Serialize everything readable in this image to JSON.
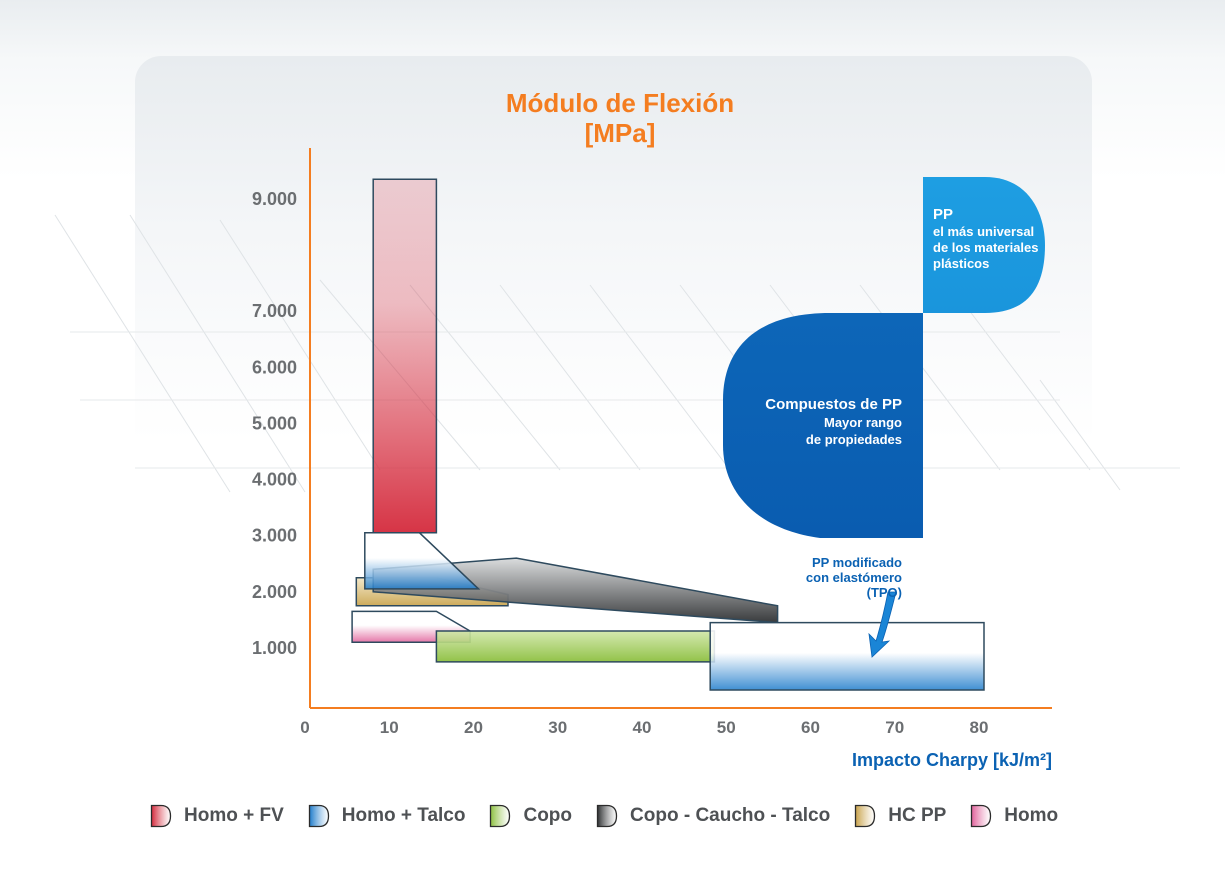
{
  "chart_data": {
    "type": "range-area",
    "title": "Módulo de Flexión",
    "ylabel": "[MPa]",
    "xlabel": "Impacto Charpy [kJ/m²]",
    "xlim": [
      0,
      85
    ],
    "ylim": [
      0,
      9000
    ],
    "yticks": [
      {
        "value": 1000,
        "label": "1.000"
      },
      {
        "value": 2000,
        "label": "2.000"
      },
      {
        "value": 3000,
        "label": "3.000"
      },
      {
        "value": 4000,
        "label": "4.000"
      },
      {
        "value": 5000,
        "label": "5.000"
      },
      {
        "value": 6000,
        "label": "6.000"
      },
      {
        "value": 7000,
        "label": "7.000"
      },
      {
        "value": 9000,
        "label": "9.000"
      }
    ],
    "xticks": [
      {
        "value": 0,
        "label": "0"
      },
      {
        "value": 10,
        "label": "10"
      },
      {
        "value": 20,
        "label": "20"
      },
      {
        "value": 30,
        "label": "30"
      },
      {
        "value": 40,
        "label": "40"
      },
      {
        "value": 50,
        "label": "50"
      },
      {
        "value": 60,
        "label": "60"
      },
      {
        "value": 70,
        "label": "70"
      },
      {
        "value": 80,
        "label": "80"
      }
    ],
    "series": [
      {
        "name": "Homo",
        "color": "#e0609a",
        "points": [
          [
            5,
            1650
          ],
          [
            15,
            1650
          ],
          [
            19,
            1300
          ],
          [
            19,
            1100
          ],
          [
            5,
            1100
          ]
        ]
      },
      {
        "name": "Copo",
        "color": "#8cbf3f",
        "points": [
          [
            15,
            1300
          ],
          [
            48,
            1300
          ],
          [
            48,
            750
          ],
          [
            15,
            750
          ]
        ]
      },
      {
        "name": "HC PP",
        "color": "#c8a24a",
        "points": [
          [
            5.5,
            2250
          ],
          [
            15,
            2250
          ],
          [
            23.5,
            1950
          ],
          [
            23.5,
            1750
          ],
          [
            5.5,
            1750
          ]
        ]
      },
      {
        "name": "Copo - Caucho - Talco",
        "color": "#2f3133",
        "points": [
          [
            7.5,
            2400
          ],
          [
            24.5,
            2600
          ],
          [
            55.5,
            1750
          ],
          [
            55.5,
            1450
          ],
          [
            7.5,
            2000
          ]
        ]
      },
      {
        "name": "Homo + Talco",
        "color": "#1f7ccb",
        "points": [
          [
            6.5,
            3050
          ],
          [
            13,
            3050
          ],
          [
            20,
            2050
          ],
          [
            6.5,
            2050
          ]
        ]
      },
      {
        "name": "Homo + FV",
        "color": "#d42a3c",
        "points": [
          [
            7.5,
            9350
          ],
          [
            15,
            9350
          ],
          [
            15,
            3050
          ],
          [
            7.5,
            3050
          ]
        ]
      },
      {
        "name": "TPO",
        "color": "#1f7ccb",
        "points": [
          [
            47.5,
            1450
          ],
          [
            80,
            1450
          ],
          [
            80,
            250
          ],
          [
            47.5,
            250
          ]
        ]
      }
    ],
    "legend_position": "bottom"
  },
  "callouts": {
    "pp_head": "PP",
    "pp_line1": "el más universal",
    "pp_line2": "de los materiales",
    "pp_line3": "plásticos",
    "comp_head": "Compuestos de PP",
    "comp_line1": "Mayor rango",
    "comp_line2": "de propiedades",
    "tpo_line1": "PP modificado",
    "tpo_line2": "con elastómero",
    "tpo_line3": "(TPO)"
  },
  "legend": [
    {
      "label": "Homo + FV",
      "color": "#d42a3c"
    },
    {
      "label": "Homo + Talco",
      "color": "#1f7ccb"
    },
    {
      "label": "Copo",
      "color": "#8cbf3f"
    },
    {
      "label": "Copo - Caucho - Talco",
      "color": "#2f3133"
    },
    {
      "label": "HC PP",
      "color": "#c8a24a"
    },
    {
      "label": "Homo",
      "color": "#e0609a"
    }
  ],
  "colors": {
    "axis": "#f47d20",
    "title": "#f47d20",
    "accent_blue": "#0b62b3",
    "callout_light": "#1a95dc",
    "callout_dark": "#0a5cb0"
  }
}
